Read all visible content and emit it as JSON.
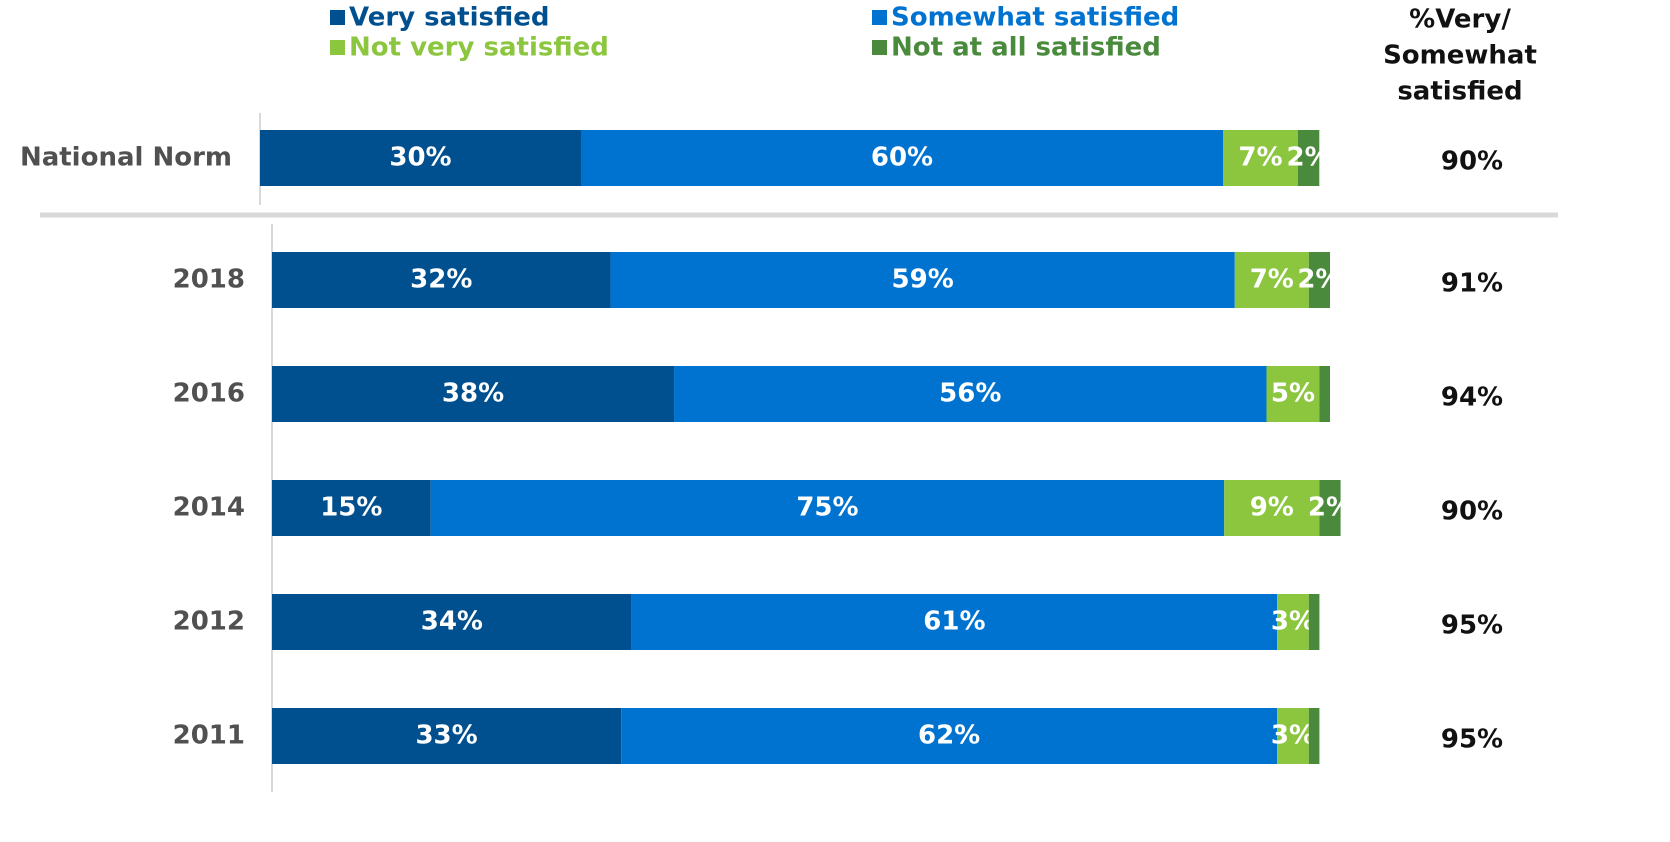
{
  "chart_data": {
    "type": "stacked-bar-horizontal",
    "categories": [
      "National Norm",
      "2018",
      "2016",
      "2014",
      "2012",
      "2011"
    ],
    "xlim": [
      0,
      100
    ],
    "series": [
      {
        "name": "Very satisfied",
        "color": "#00508f",
        "values": [
          30,
          32,
          38,
          15,
          34,
          33
        ],
        "value_labels": [
          "30%",
          "32%",
          "38%",
          "15%",
          "34%",
          "33%"
        ]
      },
      {
        "name": "Somewhat satisfied",
        "color": "#0073d1",
        "values": [
          60,
          59,
          56,
          75,
          61,
          62
        ],
        "value_labels": [
          "60%",
          "59%",
          "56%",
          "75%",
          "61%",
          "62%"
        ]
      },
      {
        "name": "Not very satisfied",
        "color": "#8cc63f",
        "values": [
          7,
          7,
          5,
          9,
          3,
          3
        ],
        "value_labels": [
          "7%",
          "7%",
          "5%",
          "9%",
          "3%",
          "3%"
        ]
      },
      {
        "name": "Not at all satisfied",
        "color": "#4a8a3c",
        "values": [
          2,
          2,
          1,
          2,
          1,
          1
        ],
        "value_labels": [
          "2%",
          "2%",
          null,
          "2%",
          null,
          null
        ]
      }
    ],
    "totals": {
      "title": [
        "%Very/",
        "Somewhat",
        "satisfied"
      ],
      "values": [
        90,
        91,
        94,
        90,
        95,
        95
      ],
      "value_labels": [
        "90%",
        "91%",
        "94%",
        "90%",
        "95%",
        "95%"
      ]
    }
  }
}
